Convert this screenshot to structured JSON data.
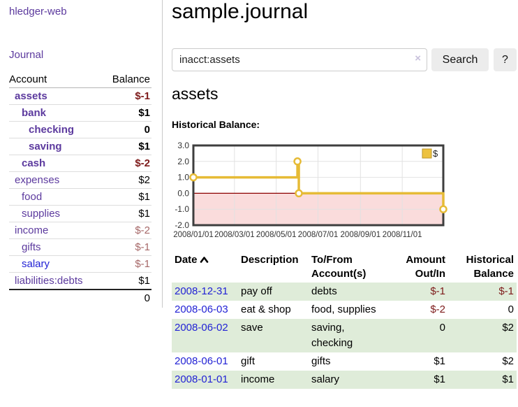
{
  "sidebar": {
    "app_title": "hledger-web",
    "journal_label": "Journal",
    "accounts_table": {
      "account_header": "Account",
      "balance_header": "Balance",
      "rows": [
        {
          "name": "assets",
          "balance": "$-1",
          "depth": 1,
          "bold": true,
          "balance_style": "neg",
          "link_style": "visited"
        },
        {
          "name": "bank",
          "balance": "$1",
          "depth": 2,
          "bold": true,
          "balance_style": "normal",
          "link_style": "visited"
        },
        {
          "name": "checking",
          "balance": "0",
          "depth": 3,
          "bold": true,
          "balance_style": "normal",
          "link_style": "visited"
        },
        {
          "name": "saving",
          "balance": "$1",
          "depth": 3,
          "bold": true,
          "balance_style": "normal",
          "link_style": "visited"
        },
        {
          "name": "cash",
          "balance": "$-2",
          "depth": 2,
          "bold": true,
          "balance_style": "neg",
          "link_style": "visited"
        },
        {
          "name": "expenses",
          "balance": "$2",
          "depth": 1,
          "bold": false,
          "balance_style": "normal",
          "link_style": "visited"
        },
        {
          "name": "food",
          "balance": "$1",
          "depth": 2,
          "bold": false,
          "balance_style": "normal",
          "link_style": "visited"
        },
        {
          "name": "supplies",
          "balance": "$1",
          "depth": 2,
          "bold": false,
          "balance_style": "normal",
          "link_style": "visited"
        },
        {
          "name": "income",
          "balance": "$-2",
          "depth": 1,
          "bold": false,
          "balance_style": "neg-soft",
          "link_style": "visited"
        },
        {
          "name": "gifts",
          "balance": "$-1",
          "depth": 2,
          "bold": false,
          "balance_style": "neg-soft",
          "link_style": "visited"
        },
        {
          "name": "salary",
          "balance": "$-1",
          "depth": 2,
          "bold": false,
          "balance_style": "neg-soft",
          "link_style": "unvisited"
        },
        {
          "name": "liabilities:debts",
          "balance": "$1",
          "depth": 1,
          "bold": false,
          "balance_style": "normal",
          "link_style": "visited"
        }
      ],
      "total": "0"
    }
  },
  "main": {
    "title": "sample.journal",
    "search": {
      "value": "inacct:assets",
      "clear_icon": "×",
      "button_label": "Search",
      "help_label": "?"
    },
    "account_heading": "assets",
    "register": {
      "headers": {
        "date": "Date",
        "sort_icon": "chevron-up",
        "description": "Description",
        "accounts_line1": "To/From",
        "accounts_line2": "Account(s)",
        "amount_line1": "Amount",
        "amount_line2": "Out/In",
        "balance_line1": "Historical",
        "balance_line2": "Balance"
      },
      "rows": [
        {
          "date": "2008-12-31",
          "description": "pay off",
          "account_lines": [
            "debts"
          ],
          "amount": "$-1",
          "amount_style": "neg",
          "balance": "$-1",
          "balance_style": "neg"
        },
        {
          "date": "2008-06-03",
          "description": "eat & shop",
          "account_lines": [
            "food, supplies"
          ],
          "amount": "$-2",
          "amount_style": "neg",
          "balance": "0",
          "balance_style": "normal"
        },
        {
          "date": "2008-06-02",
          "description": "save",
          "account_lines": [
            "saving,",
            "checking"
          ],
          "amount": "0",
          "amount_style": "normal",
          "balance": "$2",
          "balance_style": "normal"
        },
        {
          "date": "2008-06-01",
          "description": "gift",
          "account_lines": [
            "gifts"
          ],
          "amount": "$1",
          "amount_style": "normal",
          "balance": "$2",
          "balance_style": "normal"
        },
        {
          "date": "2008-01-01",
          "description": "income",
          "account_lines": [
            "salary"
          ],
          "amount": "$1",
          "amount_style": "normal",
          "balance": "$1",
          "balance_style": "normal"
        }
      ]
    }
  },
  "chart_data": {
    "type": "line",
    "step": true,
    "title": "Historical Balance:",
    "series": [
      {
        "name": "$",
        "color": "#e6bb36",
        "points": [
          [
            "2008-01-01",
            1
          ],
          [
            "2008-06-01",
            2
          ],
          [
            "2008-06-03",
            0
          ],
          [
            "2008-12-31",
            -1
          ]
        ]
      }
    ],
    "x_range": [
      "2008-01-01",
      "2008-12-31"
    ],
    "x_ticks": [
      {
        "date": "2008-01-01",
        "label": "2008/01/01"
      },
      {
        "date": "2008-03-01",
        "label": "2008/03/01"
      },
      {
        "date": "2008-05-01",
        "label": "2008/05/01"
      },
      {
        "date": "2008-07-01",
        "label": "2008/07/01"
      },
      {
        "date": "2008-09-01",
        "label": "2008/09/01"
      },
      {
        "date": "2008-11-01",
        "label": "2008/11/01"
      }
    ],
    "y_ticks": [
      {
        "value": 3,
        "label": "3.0"
      },
      {
        "value": 2,
        "label": "2.0"
      },
      {
        "value": 1,
        "label": "1.0"
      },
      {
        "value": 0,
        "label": "0.0"
      },
      {
        "value": -1,
        "label": "-1.0"
      },
      {
        "value": -2,
        "label": "-2.0"
      }
    ],
    "ylim": [
      -2,
      3
    ],
    "legend": {
      "label": "$",
      "position": "top-right",
      "swatch_fill": "#edc240",
      "swatch_border": "#bb9427"
    },
    "colors": {
      "grid": "#e2e2e2",
      "border": "#3e3e3e",
      "zero_line": "#8b0000",
      "negative_region_fill": "#fadcdc",
      "marker_fill": "#ffffff",
      "tick_text": "#333333"
    }
  }
}
